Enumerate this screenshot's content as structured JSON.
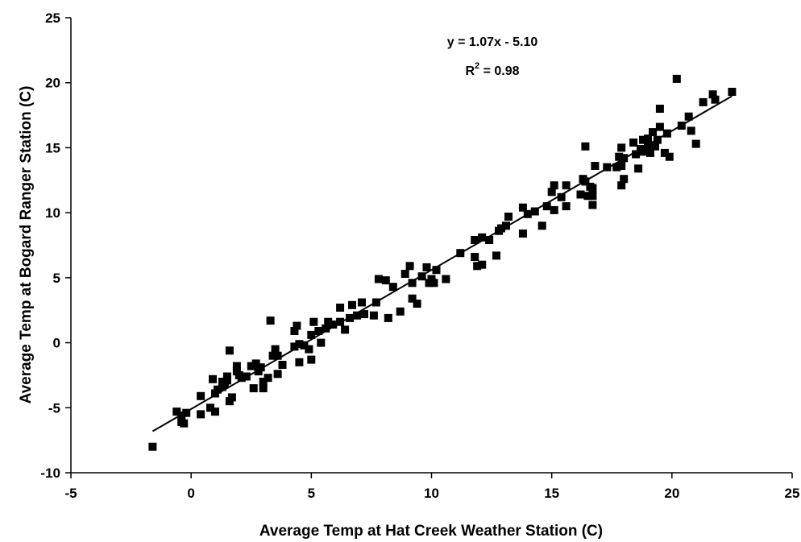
{
  "chart_data": {
    "type": "scatter",
    "title": "",
    "xlabel": "Average Temp at Hat Creek Weather Station (C)",
    "ylabel": "Average Temp at Bogard Ranger Station (C)",
    "xlim": [
      -5,
      25
    ],
    "ylim": [
      -10,
      25
    ],
    "xticks": [
      -5,
      0,
      5,
      10,
      15,
      20,
      25
    ],
    "yticks": [
      -10,
      -5,
      0,
      5,
      10,
      15,
      20,
      25
    ],
    "grid": false,
    "marker": "square",
    "marker_color": "#000000",
    "annotation": {
      "equation": "y = 1.07x - 5.10",
      "r2_prefix": "R",
      "r2_exp": "2",
      "r2_suffix": " = 0.98"
    },
    "trendline": {
      "slope": 1.07,
      "intercept": -5.1,
      "x_range": [
        -1.6,
        22.5
      ],
      "color": "#000000"
    },
    "series": [
      {
        "points": [
          [
            -1.6,
            -8.0
          ],
          [
            -0.6,
            -5.3
          ],
          [
            -0.4,
            -5.6
          ],
          [
            -0.3,
            -6.2
          ],
          [
            -0.4,
            -6.1
          ],
          [
            -0.2,
            -5.4
          ],
          [
            0.4,
            -5.5
          ],
          [
            0.4,
            -4.1
          ],
          [
            0.8,
            -5.0
          ],
          [
            0.9,
            -2.8
          ],
          [
            1.0,
            -5.3
          ],
          [
            1.0,
            -3.9
          ],
          [
            1.1,
            -3.6
          ],
          [
            1.3,
            -3.0
          ],
          [
            1.3,
            -3.4
          ],
          [
            1.4,
            -3.2
          ],
          [
            1.5,
            -2.6
          ],
          [
            1.5,
            -2.9
          ],
          [
            1.6,
            -0.6
          ],
          [
            1.6,
            -4.5
          ],
          [
            1.7,
            -4.2
          ],
          [
            1.9,
            -1.8
          ],
          [
            1.9,
            -2.2
          ],
          [
            2.0,
            -2.5
          ],
          [
            2.1,
            -2.7
          ],
          [
            2.3,
            -2.6
          ],
          [
            2.5,
            -1.8
          ],
          [
            2.6,
            -3.5
          ],
          [
            2.7,
            -1.6
          ],
          [
            2.8,
            -2.2
          ],
          [
            2.9,
            -1.9
          ],
          [
            3.0,
            -3.0
          ],
          [
            3.0,
            -3.5
          ],
          [
            3.2,
            -2.7
          ],
          [
            3.3,
            1.7
          ],
          [
            3.4,
            -1.0
          ],
          [
            3.5,
            -0.5
          ],
          [
            3.6,
            -1.0
          ],
          [
            3.6,
            -2.4
          ],
          [
            3.8,
            -1.7
          ],
          [
            4.3,
            -0.3
          ],
          [
            4.3,
            0.9
          ],
          [
            4.4,
            1.3
          ],
          [
            4.5,
            -0.1
          ],
          [
            4.5,
            -1.5
          ],
          [
            4.7,
            -0.2
          ],
          [
            4.9,
            -0.5
          ],
          [
            5.0,
            -1.3
          ],
          [
            5.0,
            0.6
          ],
          [
            5.1,
            1.6
          ],
          [
            5.3,
            0.9
          ],
          [
            5.4,
            0.0
          ],
          [
            5.6,
            1.1
          ],
          [
            5.7,
            1.6
          ],
          [
            5.9,
            1.4
          ],
          [
            6.2,
            1.6
          ],
          [
            6.2,
            2.7
          ],
          [
            6.4,
            1.0
          ],
          [
            6.6,
            1.9
          ],
          [
            6.7,
            2.9
          ],
          [
            6.9,
            2.1
          ],
          [
            7.1,
            3.1
          ],
          [
            7.2,
            2.2
          ],
          [
            7.6,
            2.1
          ],
          [
            7.7,
            3.1
          ],
          [
            7.8,
            4.9
          ],
          [
            8.1,
            4.8
          ],
          [
            8.2,
            1.9
          ],
          [
            8.4,
            4.3
          ],
          [
            8.7,
            2.4
          ],
          [
            8.9,
            5.3
          ],
          [
            9.1,
            5.9
          ],
          [
            9.2,
            4.6
          ],
          [
            9.2,
            3.4
          ],
          [
            9.4,
            3.0
          ],
          [
            9.6,
            5.1
          ],
          [
            9.8,
            5.8
          ],
          [
            9.9,
            4.6
          ],
          [
            10.0,
            4.9
          ],
          [
            10.1,
            4.6
          ],
          [
            10.2,
            5.6
          ],
          [
            10.6,
            4.9
          ],
          [
            11.2,
            6.9
          ],
          [
            11.8,
            7.9
          ],
          [
            11.8,
            6.6
          ],
          [
            11.9,
            5.9
          ],
          [
            12.1,
            8.1
          ],
          [
            12.1,
            6.0
          ],
          [
            12.4,
            7.9
          ],
          [
            12.7,
            6.7
          ],
          [
            12.8,
            8.6
          ],
          [
            12.9,
            8.8
          ],
          [
            13.1,
            9.0
          ],
          [
            13.2,
            9.7
          ],
          [
            13.8,
            10.4
          ],
          [
            13.8,
            8.4
          ],
          [
            14.0,
            9.9
          ],
          [
            14.3,
            10.1
          ],
          [
            14.6,
            9.0
          ],
          [
            14.8,
            10.5
          ],
          [
            15.0,
            11.6
          ],
          [
            15.1,
            12.1
          ],
          [
            15.1,
            10.2
          ],
          [
            15.4,
            11.2
          ],
          [
            15.6,
            12.1
          ],
          [
            15.6,
            10.5
          ],
          [
            16.2,
            11.4
          ],
          [
            16.3,
            12.6
          ],
          [
            16.4,
            12.4
          ],
          [
            16.4,
            15.1
          ],
          [
            16.5,
            11.3
          ],
          [
            16.6,
            12.0
          ],
          [
            16.7,
            10.6
          ],
          [
            16.7,
            11.3
          ],
          [
            16.7,
            11.9
          ],
          [
            16.8,
            13.6
          ],
          [
            17.3,
            13.5
          ],
          [
            17.7,
            13.5
          ],
          [
            17.8,
            14.3
          ],
          [
            17.9,
            12.1
          ],
          [
            17.9,
            15.0
          ],
          [
            17.9,
            13.6
          ],
          [
            18.0,
            12.6
          ],
          [
            18.0,
            14.2
          ],
          [
            18.4,
            15.4
          ],
          [
            18.5,
            14.5
          ],
          [
            18.6,
            13.4
          ],
          [
            18.7,
            14.9
          ],
          [
            18.8,
            14.7
          ],
          [
            18.8,
            15.6
          ],
          [
            19.0,
            15.2
          ],
          [
            19.0,
            15.7
          ],
          [
            19.1,
            14.6
          ],
          [
            19.2,
            16.2
          ],
          [
            19.3,
            15.1
          ],
          [
            19.4,
            15.6
          ],
          [
            19.5,
            16.6
          ],
          [
            19.5,
            18.0
          ],
          [
            19.7,
            14.6
          ],
          [
            19.8,
            16.1
          ],
          [
            19.9,
            14.3
          ],
          [
            20.2,
            20.3
          ],
          [
            20.4,
            16.7
          ],
          [
            20.7,
            17.4
          ],
          [
            20.8,
            16.3
          ],
          [
            21.0,
            15.3
          ],
          [
            21.3,
            18.5
          ],
          [
            21.7,
            19.1
          ],
          [
            21.8,
            18.7
          ],
          [
            22.5,
            19.3
          ]
        ]
      }
    ]
  }
}
